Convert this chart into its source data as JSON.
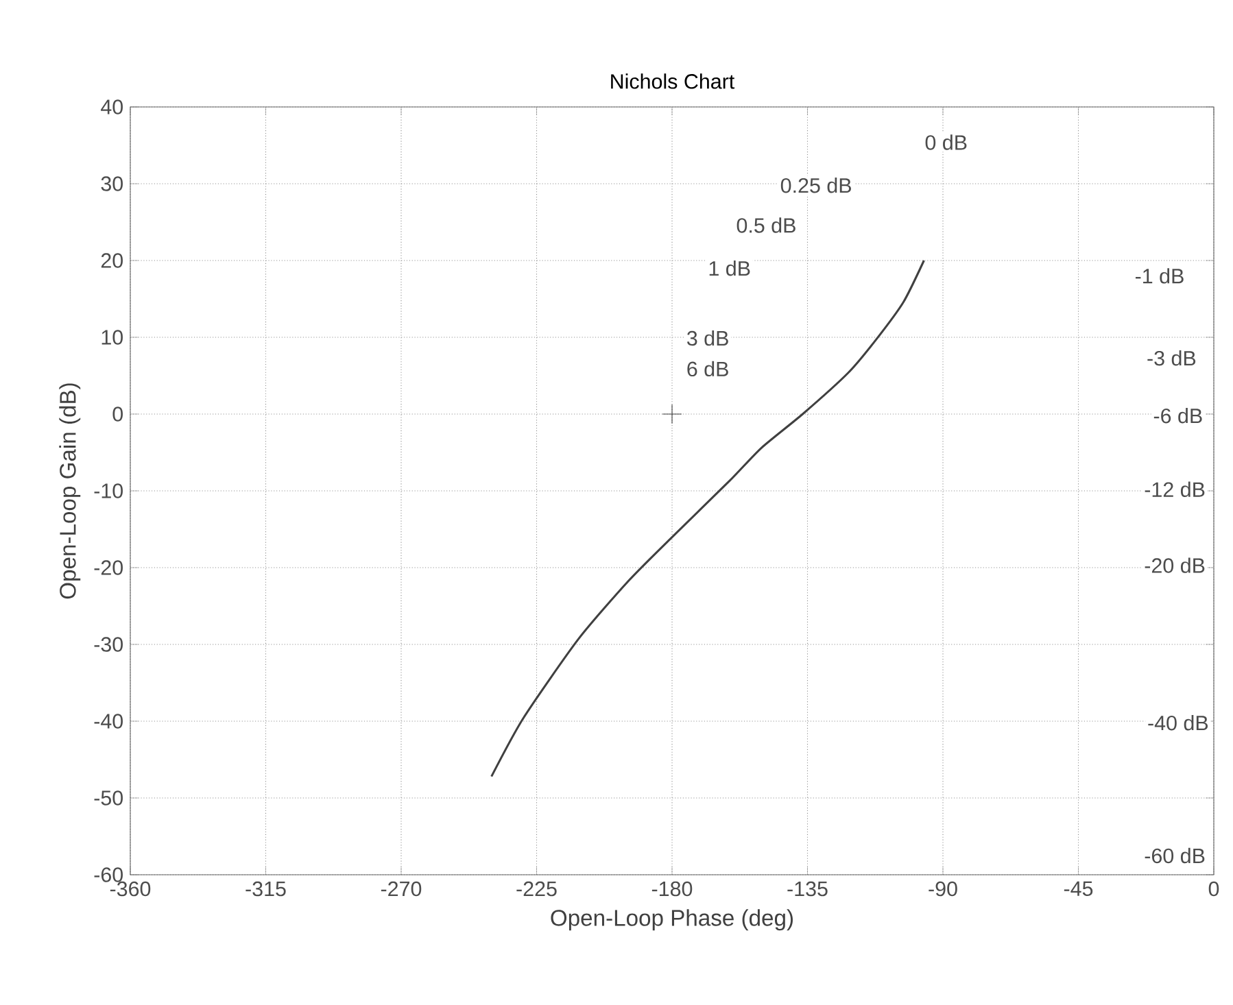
{
  "chart_data": {
    "type": "line",
    "title": "Nichols Chart",
    "xlabel": "Open-Loop Phase (deg)",
    "ylabel": "Open-Loop Gain (dB)",
    "xlim": [
      -360,
      0
    ],
    "xticks": [
      -360,
      -315,
      -270,
      -225,
      -180,
      -135,
      -90,
      -45,
      0
    ],
    "ylim": [
      -60,
      40
    ],
    "yticks": [
      -60,
      -50,
      -40,
      -30,
      -20,
      -10,
      0,
      10,
      20,
      30,
      40
    ],
    "grid": true,
    "line_style": "solid",
    "series": [
      {
        "color": "#404040",
        "x": [
          -240.0,
          -229.4,
          -211.1,
          -194.4,
          -180.7,
          -160.9,
          -150.3,
          -136.6,
          -121.4,
          -112.2,
          -103.1,
          -96.3
        ],
        "values": [
          -47.2,
          -39.6,
          -29.3,
          -21.7,
          -16.3,
          -8.7,
          -4.4,
          0,
          5.4,
          9.7,
          14.6,
          20.0
        ]
      },
      {
        "type": "scatter",
        "marker": "cross",
        "color": "#404040",
        "x": [
          -180
        ],
        "values": [
          0
        ]
      }
    ],
    "annotations": [
      "0 dB",
      "0.25 dB",
      "0.5 dB",
      "1 dB",
      "3 dB",
      "6 dB",
      "-1 dB",
      "-3 dB",
      "-6 dB",
      "-12 dB",
      "-20 dB",
      "-40 dB",
      "-60 dB"
    ]
  }
}
